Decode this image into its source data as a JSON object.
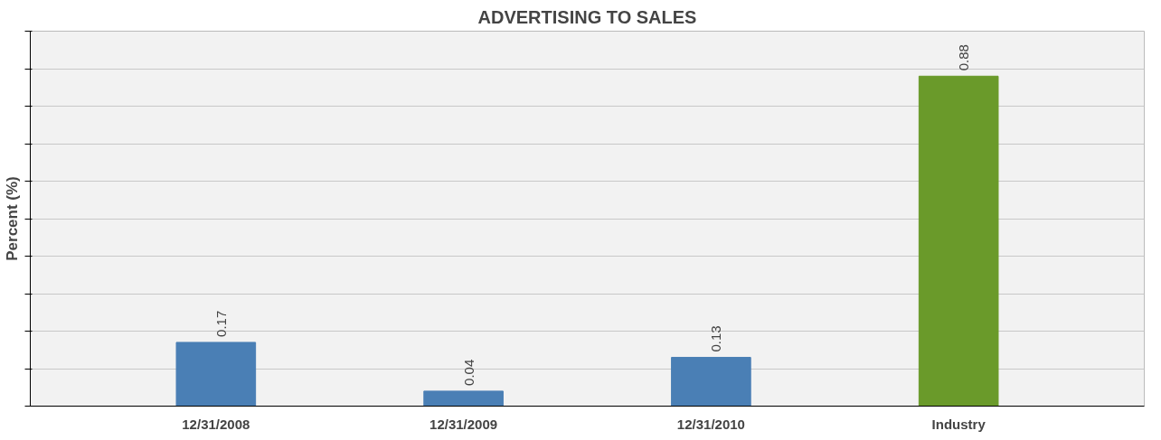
{
  "chart_data": {
    "type": "bar",
    "title": "ADVERTISING TO SALES",
    "ylabel": "Percent (%)",
    "categories": [
      "12/31/2008",
      "12/31/2009",
      "12/31/2010",
      "Industry"
    ],
    "values": [
      0.17,
      0.04,
      0.13,
      0.88
    ],
    "colors": [
      "#4a7fb5",
      "#4a7fb5",
      "#4a7fb5",
      "#6a9a2a"
    ],
    "data_labels": true,
    "ylim": [
      0,
      1
    ],
    "yticks": [
      {
        "value": 0,
        "label": null
      },
      {
        "value": 0.1,
        "label": null
      },
      {
        "value": 0.2,
        "label": null
      },
      {
        "value": 0.3,
        "label": null
      },
      {
        "value": 0.4,
        "label": null
      },
      {
        "value": 0.5,
        "label": null
      },
      {
        "value": 0.6,
        "label": null
      },
      {
        "value": 0.7,
        "label": null
      },
      {
        "value": 0.8,
        "label": null
      },
      {
        "value": 0.9,
        "label": null
      },
      {
        "value": 1.0,
        "label": null
      }
    ],
    "tick_labels": "x",
    "grid": "y"
  }
}
